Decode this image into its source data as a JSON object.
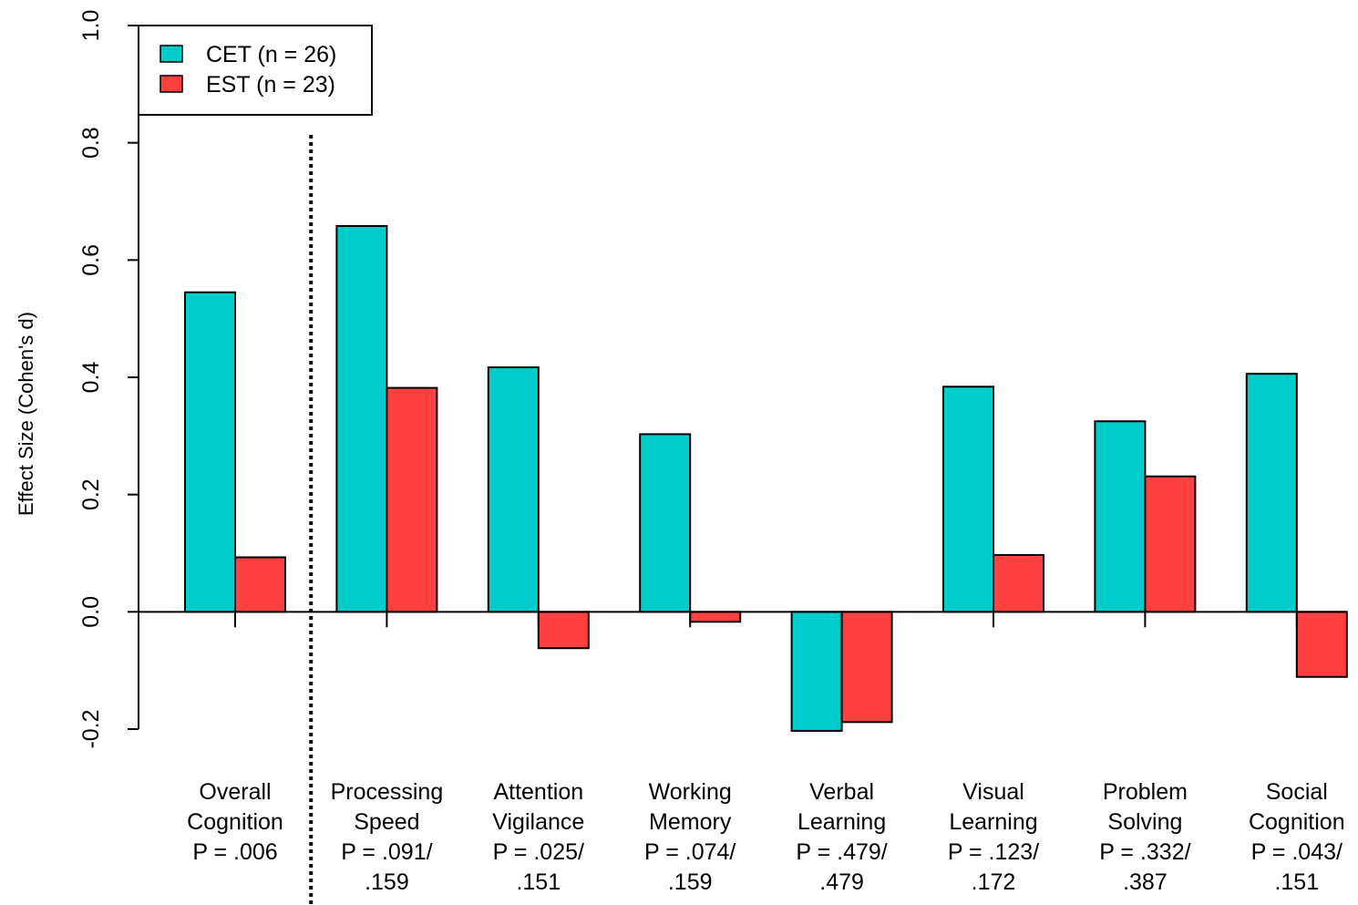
{
  "chart_data": {
    "type": "bar",
    "ylabel": "Effect Size (Cohen's d)",
    "xlabel": "",
    "ylim": [
      -0.2,
      1.0
    ],
    "yticks": [
      "-0.2",
      "0.0",
      "0.2",
      "0.4",
      "0.6",
      "0.8",
      "1.0"
    ],
    "grid": false,
    "legend_position": "top-left",
    "categories": [
      [
        "Overall",
        "Cognition",
        "P = .006"
      ],
      [
        "Processing",
        "Speed",
        "P = .091/",
        ".159"
      ],
      [
        "Attention",
        "Vigilance",
        "P = .025/",
        ".151"
      ],
      [
        "Working",
        "Memory",
        "P = .074/",
        ".159"
      ],
      [
        "Verbal",
        "Learning",
        "P = .479/",
        ".479"
      ],
      [
        "Visual",
        "Learning",
        "P = .123/",
        ".172"
      ],
      [
        "Problem",
        "Solving",
        "P = .332/",
        ".387"
      ],
      [
        "Social",
        "Cognition",
        "P = .043/",
        ".151"
      ]
    ],
    "series": [
      {
        "name": "CET (n = 26)",
        "color": "#00cccc",
        "values": [
          0.545,
          0.658,
          0.417,
          0.303,
          -0.203,
          0.384,
          0.325,
          0.406
        ]
      },
      {
        "name": "EST (n = 23)",
        "color": "#ff4040",
        "values": [
          0.093,
          0.382,
          -0.062,
          -0.017,
          -0.188,
          0.097,
          0.231,
          -0.111
        ]
      }
    ],
    "separator_after_category": 0
  }
}
